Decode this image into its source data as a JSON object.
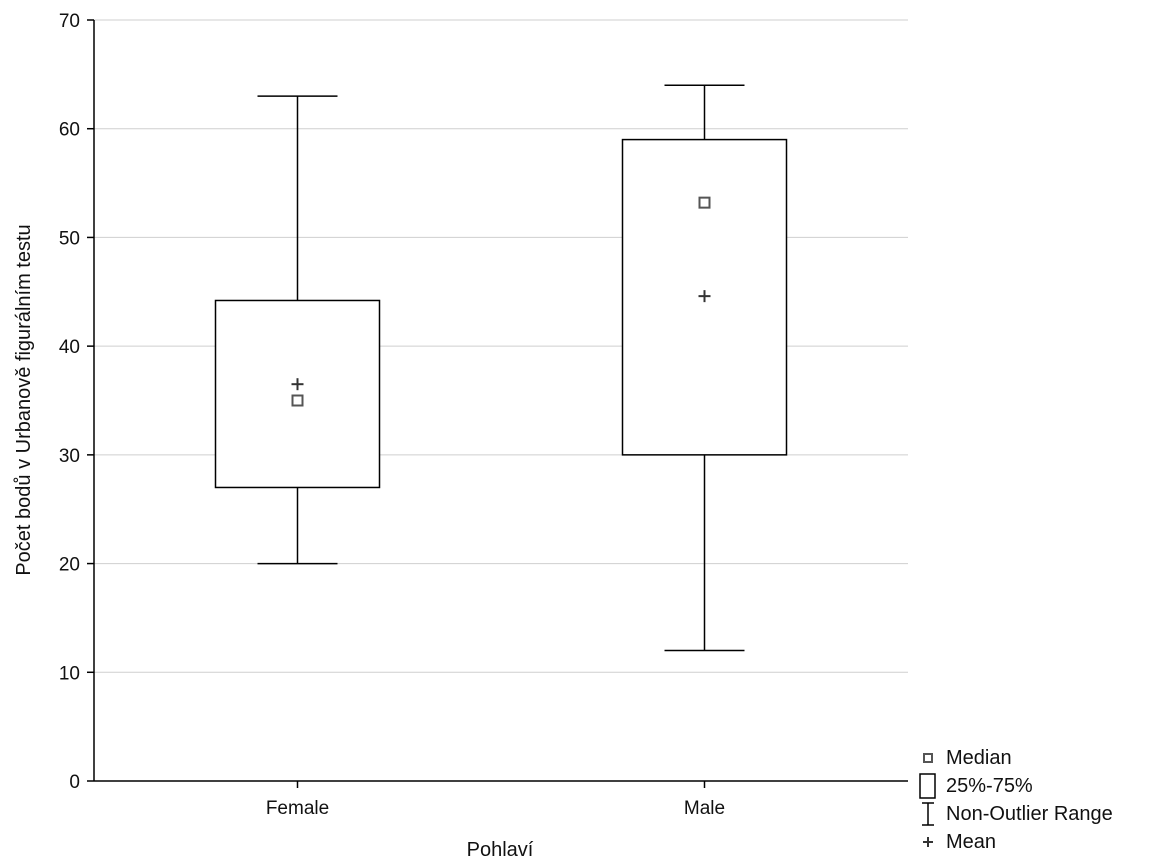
{
  "chart_data": {
    "type": "boxplot",
    "xlabel": "Pohlaví",
    "ylabel": "Počet bodů v Urbanově figurálním testu",
    "ylim": [
      0,
      70
    ],
    "yticks": [
      0,
      10,
      20,
      30,
      40,
      50,
      60,
      70
    ],
    "grid": "horizontal",
    "legend_position": "bottom-right",
    "categories": [
      "Female",
      "Male"
    ],
    "boxes": [
      {
        "category": "Female",
        "min": 20,
        "q1": 27,
        "median": 35,
        "q3": 44.2,
        "max": 63,
        "mean": 36.5
      },
      {
        "category": "Male",
        "min": 12,
        "q1": 30,
        "median": 53.2,
        "q3": 59,
        "max": 64,
        "mean": 44.6
      }
    ],
    "legend": [
      {
        "symbol": "median-square",
        "label": "Median"
      },
      {
        "symbol": "box",
        "label": "25%-75%"
      },
      {
        "symbol": "whisker",
        "label": "Non-Outlier Range"
      },
      {
        "symbol": "plus",
        "label": "Mean"
      }
    ]
  }
}
